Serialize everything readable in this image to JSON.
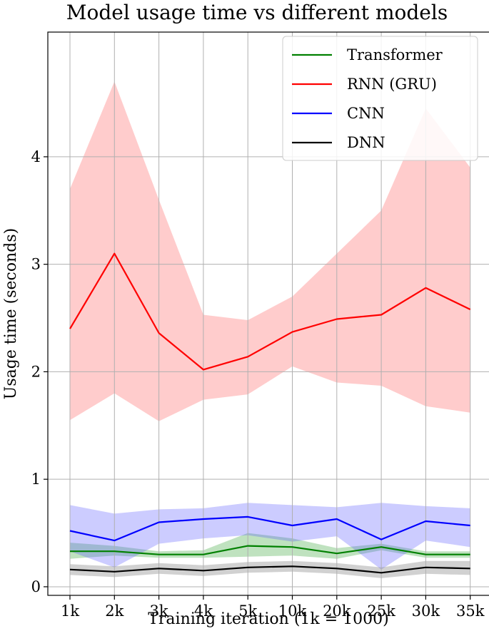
{
  "chart_data": {
    "type": "line",
    "title": "Model usage time vs different models",
    "xlabel": "Training iteration (1k = 1000)",
    "ylabel": "Usage time (seconds)",
    "categories": [
      "1k",
      "2k",
      "3k",
      "4k",
      "5k",
      "10k",
      "20k",
      "25k",
      "30k",
      "35k"
    ],
    "ylim": [
      -0.08,
      5.16
    ],
    "yticks": [
      0,
      1,
      2,
      3,
      4
    ],
    "grid": true,
    "legend_position": "top-right",
    "series": [
      {
        "name": "Transformer",
        "color": "#008000",
        "band_color": "#2ca02c",
        "values": [
          0.33,
          0.33,
          0.3,
          0.3,
          0.38,
          0.37,
          0.31,
          0.37,
          0.3,
          0.3
        ],
        "upper": [
          0.41,
          0.38,
          0.33,
          0.34,
          0.5,
          0.45,
          0.36,
          0.4,
          0.33,
          0.33
        ],
        "lower": [
          0.26,
          0.29,
          0.27,
          0.27,
          0.28,
          0.29,
          0.26,
          0.34,
          0.27,
          0.27
        ]
      },
      {
        "name": "RNN (GRU)",
        "color": "#ff0000",
        "band_color": "#ff5555",
        "values": [
          2.4,
          3.1,
          2.36,
          2.02,
          2.14,
          2.37,
          2.49,
          2.53,
          2.78,
          2.58
        ],
        "upper": [
          3.7,
          4.7,
          3.6,
          2.53,
          2.48,
          2.7,
          3.1,
          3.5,
          4.45,
          3.9
        ],
        "lower": [
          1.55,
          1.8,
          1.54,
          1.74,
          1.79,
          2.05,
          1.9,
          1.87,
          1.68,
          1.62
        ]
      },
      {
        "name": "CNN",
        "color": "#0000ff",
        "band_color": "#5555ff",
        "values": [
          0.52,
          0.43,
          0.6,
          0.63,
          0.65,
          0.57,
          0.63,
          0.44,
          0.61,
          0.57
        ],
        "upper": [
          0.76,
          0.68,
          0.72,
          0.73,
          0.78,
          0.76,
          0.74,
          0.78,
          0.75,
          0.73
        ],
        "lower": [
          0.33,
          0.18,
          0.4,
          0.45,
          0.48,
          0.42,
          0.47,
          0.16,
          0.43,
          0.37
        ]
      },
      {
        "name": "DNN",
        "color": "#000000",
        "band_color": "#666666",
        "values": [
          0.16,
          0.14,
          0.17,
          0.15,
          0.18,
          0.19,
          0.17,
          0.13,
          0.18,
          0.17
        ],
        "upper": [
          0.21,
          0.19,
          0.22,
          0.2,
          0.23,
          0.24,
          0.22,
          0.18,
          0.24,
          0.24
        ],
        "lower": [
          0.11,
          0.09,
          0.12,
          0.1,
          0.13,
          0.14,
          0.12,
          0.08,
          0.12,
          0.11
        ]
      }
    ]
  }
}
